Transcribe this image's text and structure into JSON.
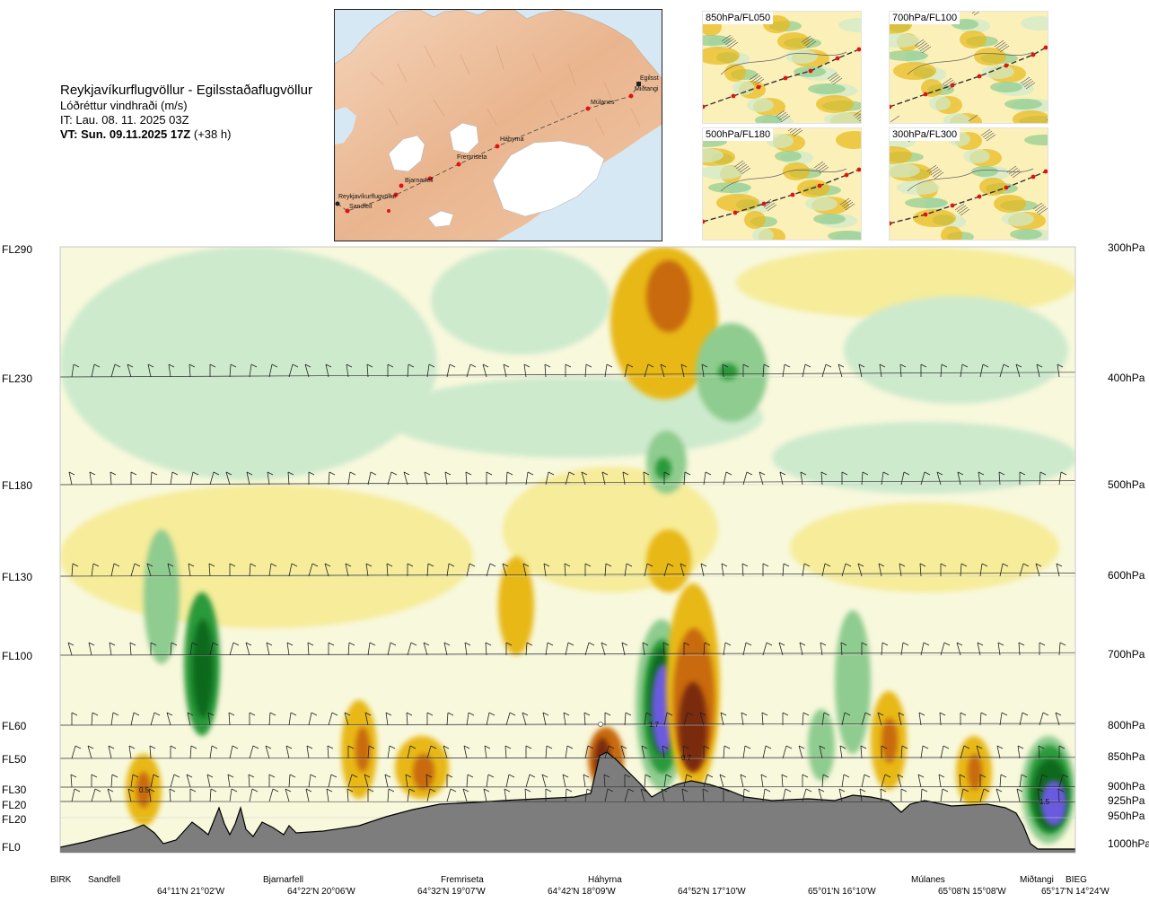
{
  "header": {
    "route": "Reykjavíkurflugvöllur - Egilsstaðaflugvöllur",
    "parameter": "Lóðréttur vindhraði (m/s)",
    "issue_time": "IT: Lau. 08. 11. 2025 03Z",
    "valid_time_bold": "VT: Sun. 09.11.2025 17Z",
    "valid_offset": "(+38 h)"
  },
  "map": {
    "places": [
      "Reykjavíkurflugvöllur",
      "Sandfell",
      "Bjarnarfell",
      "Fremriseta",
      "Háhyrna",
      "Múlanes",
      "Miðtangi",
      "Egilsst"
    ]
  },
  "panels": [
    {
      "label": "850hPa/FL050"
    },
    {
      "label": "700hPa/FL100"
    },
    {
      "label": "500hPa/FL180"
    },
    {
      "label": "300hPa/FL300"
    }
  ],
  "levels_fl": [
    "FL290",
    "FL230",
    "FL180",
    "FL130",
    "FL100",
    "FL60",
    "FL50",
    "FL30",
    "FL20",
    "FL20",
    "FL0"
  ],
  "levels_hpa": [
    "300hPa",
    "400hPa",
    "500hPa",
    "600hPa",
    "700hPa",
    "800hPa",
    "850hPa",
    "900hPa",
    "925hPa",
    "950hPa",
    "1000hPa"
  ],
  "places": [
    "BIRK",
    "Sandfell",
    "Bjarnarfell",
    "Fremriseta",
    "Háhyrna",
    "Múlanes",
    "Miðtangi",
    "BIEG"
  ],
  "coords": [
    "64°11'N 21°02'W",
    "64°22'N 20°06'W",
    "64°32'N 19°07'W",
    "64°42'N 18°09'W",
    "64°52'N 17°10'W",
    "65°01'N 16°10'W",
    "65°08'N 15°08'W",
    "65°17'N 14°24'W"
  ],
  "value_labels": [
    "0.5",
    "1.7",
    "0.7",
    "1.5"
  ],
  "colors": {
    "strong_down": "#7a2a08",
    "down_3": "#c86a10",
    "down_2": "#e8b818",
    "down_1": "#f6ec9a",
    "neutral": "#fbfbe6",
    "up_1": "#cdeacd",
    "up_2": "#8fcc8f",
    "up_3": "#2a9a3a",
    "up_4": "#0a6a1e",
    "strong_up": "#6a5ae0",
    "terrain": "#7d7d7d"
  }
}
